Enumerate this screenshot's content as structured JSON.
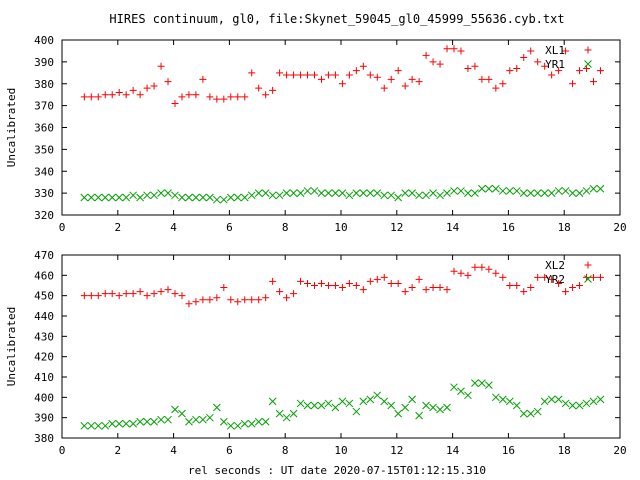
{
  "title": "HIRES continuum, gl0, file:Skynet_59045_gl0_45999_55636.cyb.txt",
  "xlabel": "rel seconds : UT date 2020-07-15T01:12:15.310",
  "colors": {
    "red": "#ff0000",
    "green": "#00a000",
    "axes": "#000000",
    "background": "#ffffff"
  },
  "chart_data": [
    {
      "type": "scatter",
      "ylabel": "Uncalibrated",
      "xlim": [
        0,
        20
      ],
      "ylim": [
        320,
        400
      ],
      "xticks": [
        0,
        2,
        4,
        6,
        8,
        10,
        12,
        14,
        16,
        18,
        20
      ],
      "yticks": [
        320,
        330,
        340,
        350,
        360,
        370,
        380,
        390,
        400
      ],
      "grid": false,
      "legend_position": "top-right",
      "series": [
        {
          "name": "XL1",
          "marker": "plus",
          "color": "#ff0000",
          "x": [
            0.8,
            1.05,
            1.3,
            1.55,
            1.8,
            2.05,
            2.3,
            2.55,
            2.8,
            3.05,
            3.3,
            3.55,
            3.8,
            4.05,
            4.3,
            4.55,
            4.8,
            5.05,
            5.3,
            5.55,
            5.8,
            6.05,
            6.3,
            6.55,
            6.8,
            7.05,
            7.3,
            7.55,
            7.8,
            8.05,
            8.3,
            8.55,
            8.8,
            9.05,
            9.3,
            9.55,
            9.8,
            10.05,
            10.3,
            10.55,
            10.8,
            11.05,
            11.3,
            11.55,
            11.8,
            12.05,
            12.3,
            12.55,
            12.8,
            13.05,
            13.3,
            13.55,
            13.8,
            14.05,
            14.3,
            14.55,
            14.8,
            15.05,
            15.3,
            15.55,
            15.8,
            16.05,
            16.3,
            16.55,
            16.8,
            17.05,
            17.3,
            17.55,
            17.8,
            18.05,
            18.3,
            18.55,
            18.8,
            19.05,
            19.3
          ],
          "y": [
            374,
            374,
            374,
            375,
            375,
            376,
            375,
            377,
            375,
            378,
            379,
            388,
            381,
            371,
            374,
            375,
            375,
            382,
            374,
            373,
            373,
            374,
            374,
            374,
            385,
            378,
            375,
            377,
            385,
            384,
            384,
            384,
            384,
            384,
            382,
            384,
            384,
            380,
            384,
            386,
            388,
            384,
            383,
            378,
            382,
            386,
            379,
            382,
            381,
            393,
            390,
            389,
            396,
            396,
            395,
            387,
            388,
            382,
            382,
            378,
            380,
            386,
            387,
            392,
            395,
            390,
            388,
            384,
            386,
            395,
            380,
            386,
            387,
            381,
            386
          ]
        },
        {
          "name": "YR1",
          "marker": "cross",
          "color": "#00a000",
          "x": [
            0.8,
            1.05,
            1.3,
            1.55,
            1.8,
            2.05,
            2.3,
            2.55,
            2.8,
            3.05,
            3.3,
            3.55,
            3.8,
            4.05,
            4.3,
            4.55,
            4.8,
            5.05,
            5.3,
            5.55,
            5.8,
            6.05,
            6.3,
            6.55,
            6.8,
            7.05,
            7.3,
            7.55,
            7.8,
            8.05,
            8.3,
            8.55,
            8.8,
            9.05,
            9.3,
            9.55,
            9.8,
            10.05,
            10.3,
            10.55,
            10.8,
            11.05,
            11.3,
            11.55,
            11.8,
            12.05,
            12.3,
            12.55,
            12.8,
            13.05,
            13.3,
            13.55,
            13.8,
            14.05,
            14.3,
            14.55,
            14.8,
            15.05,
            15.3,
            15.55,
            15.8,
            16.05,
            16.3,
            16.55,
            16.8,
            17.05,
            17.3,
            17.55,
            17.8,
            18.05,
            18.3,
            18.55,
            18.8,
            19.05,
            19.3
          ],
          "y": [
            328,
            328,
            328,
            328,
            328,
            328,
            328,
            329,
            328,
            329,
            329,
            330,
            330,
            329,
            328,
            328,
            328,
            328,
            328,
            327,
            327,
            328,
            328,
            328,
            329,
            330,
            330,
            329,
            329,
            330,
            330,
            330,
            331,
            331,
            330,
            330,
            330,
            330,
            329,
            330,
            330,
            330,
            330,
            329,
            329,
            328,
            330,
            330,
            329,
            329,
            330,
            329,
            330,
            331,
            331,
            330,
            330,
            332,
            332,
            332,
            331,
            331,
            331,
            330,
            330,
            330,
            330,
            330,
            331,
            331,
            330,
            330,
            331,
            332,
            332
          ]
        }
      ]
    },
    {
      "type": "scatter",
      "ylabel": "Uncalibrated",
      "xlim": [
        0,
        20
      ],
      "ylim": [
        380,
        470
      ],
      "xticks": [
        0,
        2,
        4,
        6,
        8,
        10,
        12,
        14,
        16,
        18,
        20
      ],
      "yticks": [
        380,
        390,
        400,
        410,
        420,
        430,
        440,
        450,
        460,
        470
      ],
      "grid": false,
      "legend_position": "top-right",
      "series": [
        {
          "name": "XL2",
          "marker": "plus",
          "color": "#ff0000",
          "x": [
            0.8,
            1.05,
            1.3,
            1.55,
            1.8,
            2.05,
            2.3,
            2.55,
            2.8,
            3.05,
            3.3,
            3.55,
            3.8,
            4.05,
            4.3,
            4.55,
            4.8,
            5.05,
            5.3,
            5.55,
            5.8,
            6.05,
            6.3,
            6.55,
            6.8,
            7.05,
            7.3,
            7.55,
            7.8,
            8.05,
            8.3,
            8.55,
            8.8,
            9.05,
            9.3,
            9.55,
            9.8,
            10.05,
            10.3,
            10.55,
            10.8,
            11.05,
            11.3,
            11.55,
            11.8,
            12.05,
            12.3,
            12.55,
            12.8,
            13.05,
            13.3,
            13.55,
            13.8,
            14.05,
            14.3,
            14.55,
            14.8,
            15.05,
            15.3,
            15.55,
            15.8,
            16.05,
            16.3,
            16.55,
            16.8,
            17.05,
            17.3,
            17.55,
            17.8,
            18.05,
            18.3,
            18.55,
            18.8,
            19.05,
            19.3
          ],
          "y": [
            450,
            450,
            450,
            451,
            451,
            450,
            451,
            451,
            452,
            450,
            451,
            452,
            453,
            451,
            450,
            446,
            447,
            448,
            448,
            449,
            454,
            448,
            447,
            448,
            448,
            448,
            449,
            457,
            452,
            449,
            451,
            457,
            456,
            455,
            456,
            455,
            455,
            454,
            456,
            455,
            453,
            457,
            458,
            459,
            456,
            456,
            452,
            454,
            458,
            453,
            454,
            454,
            453,
            462,
            461,
            460,
            464,
            464,
            463,
            461,
            459,
            455,
            455,
            452,
            454,
            459,
            459,
            458,
            456,
            452,
            454,
            455,
            459,
            459,
            459
          ]
        },
        {
          "name": "YR2",
          "marker": "cross",
          "color": "#00a000",
          "x": [
            0.8,
            1.05,
            1.3,
            1.55,
            1.8,
            2.05,
            2.3,
            2.55,
            2.8,
            3.05,
            3.3,
            3.55,
            3.8,
            4.05,
            4.3,
            4.55,
            4.8,
            5.05,
            5.3,
            5.55,
            5.8,
            6.05,
            6.3,
            6.55,
            6.8,
            7.05,
            7.3,
            7.55,
            7.8,
            8.05,
            8.3,
            8.55,
            8.8,
            9.05,
            9.3,
            9.55,
            9.8,
            10.05,
            10.3,
            10.55,
            10.8,
            11.05,
            11.3,
            11.55,
            11.8,
            12.05,
            12.3,
            12.55,
            12.8,
            13.05,
            13.3,
            13.55,
            13.8,
            14.05,
            14.3,
            14.55,
            14.8,
            15.05,
            15.3,
            15.55,
            15.8,
            16.05,
            16.3,
            16.55,
            16.8,
            17.05,
            17.3,
            17.55,
            17.8,
            18.05,
            18.3,
            18.55,
            18.8,
            19.05,
            19.3
          ],
          "y": [
            386,
            386,
            386,
            386,
            387,
            387,
            387,
            387,
            388,
            388,
            388,
            389,
            389,
            394,
            392,
            388,
            389,
            389,
            390,
            395,
            388,
            386,
            386,
            387,
            387,
            388,
            388,
            398,
            392,
            390,
            392,
            397,
            396,
            396,
            396,
            397,
            395,
            398,
            397,
            393,
            398,
            399,
            401,
            398,
            396,
            392,
            395,
            399,
            391,
            396,
            395,
            394,
            395,
            405,
            403,
            401,
            407,
            407,
            406,
            400,
            399,
            398,
            396,
            392,
            392,
            393,
            398,
            399,
            399,
            397,
            396,
            396,
            397,
            398,
            399
          ]
        }
      ]
    }
  ]
}
